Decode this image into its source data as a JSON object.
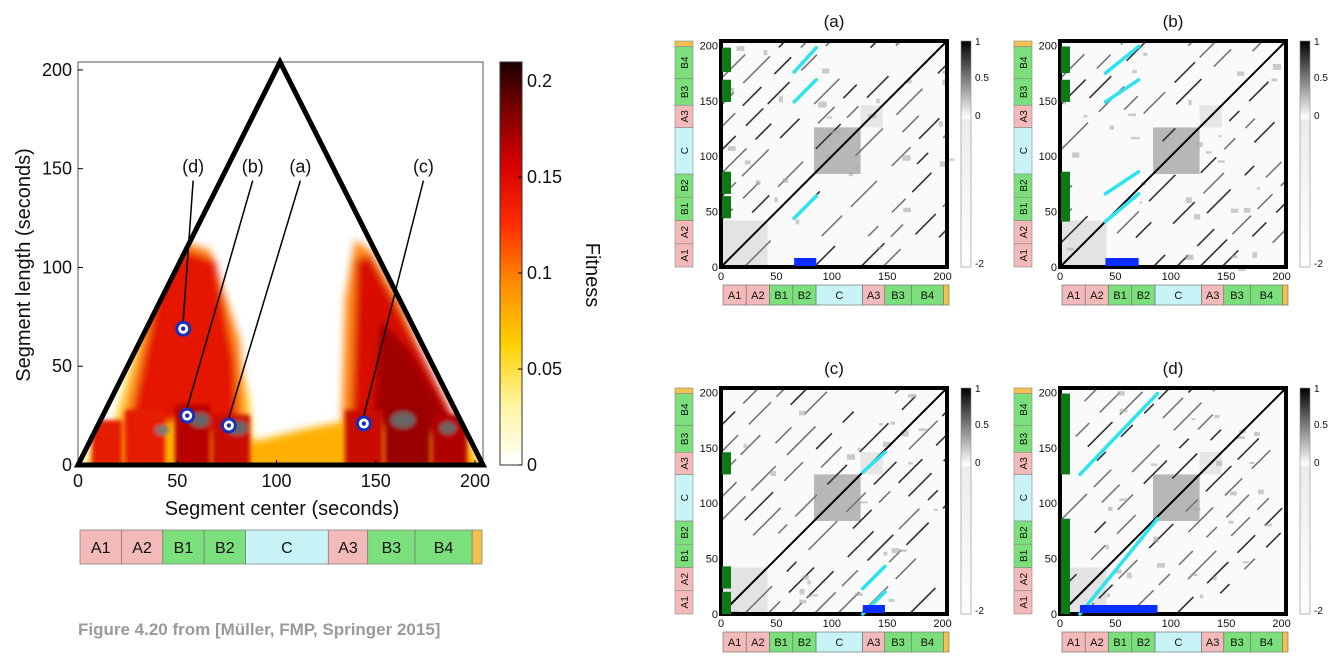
{
  "caption": "Figure 4.20 from [Müller, FMP, Springer 2015]",
  "colors": {
    "segA": "#f4b9b9",
    "segB": "#7be07b",
    "segC": "#c8f4f8",
    "segEnd": "#f2c14e",
    "path": "#2de3f0",
    "induced": "#0a2eff",
    "stripe": "#0b7a16",
    "marker": "#1a2fb8"
  },
  "segments": [
    {
      "label": "A1",
      "kind": "A",
      "start": 0,
      "end": 21
    },
    {
      "label": "A2",
      "kind": "A",
      "start": 21,
      "end": 42
    },
    {
      "label": "B1",
      "kind": "B",
      "start": 42,
      "end": 63
    },
    {
      "label": "B2",
      "kind": "B",
      "start": 63,
      "end": 84
    },
    {
      "label": "C",
      "kind": "C",
      "start": 84,
      "end": 126
    },
    {
      "label": "A3",
      "kind": "A",
      "start": 126,
      "end": 146
    },
    {
      "label": "B3",
      "kind": "B",
      "start": 146,
      "end": 170
    },
    {
      "label": "B4",
      "kind": "B",
      "start": 170,
      "end": 199
    },
    {
      "label": "",
      "kind": "end",
      "start": 199,
      "end": 204
    }
  ],
  "chart_data": [
    {
      "type": "heatmap",
      "name": "fitness-scape-plot",
      "xlabel": "Segment center (seconds)",
      "ylabel": "Segment length (seconds)",
      "xlim": [
        0,
        204
      ],
      "ylim": [
        0,
        204
      ],
      "xticks": [
        0,
        50,
        100,
        150,
        200
      ],
      "yticks": [
        0,
        50,
        100,
        150,
        200
      ],
      "colorbar": {
        "label": "Fitness",
        "range": [
          0,
          0.21
        ],
        "ticks": [
          0,
          0.05,
          0.1,
          0.15,
          0.2
        ]
      },
      "points": [
        {
          "label": "(a)",
          "x": 76,
          "y": 20,
          "label_x": 112,
          "label_y": 148
        },
        {
          "label": "(b)",
          "x": 55,
          "y": 25,
          "label_x": 88,
          "label_y": 148
        },
        {
          "label": "(c)",
          "x": 144,
          "y": 21,
          "label_x": 174,
          "label_y": 148
        },
        {
          "label": "(d)",
          "x": 53,
          "y": 69,
          "label_x": 58,
          "label_y": 148
        }
      ]
    },
    {
      "type": "heatmap",
      "name": "ssm-a",
      "title": "(a)",
      "xlim": [
        0,
        204
      ],
      "ylim": [
        0,
        204
      ],
      "xticks": [
        0,
        50,
        100,
        150,
        200
      ],
      "yticks": [
        0,
        50,
        100,
        150,
        200
      ],
      "colorbar_ticks": [
        "1",
        "0.5",
        "0",
        "-2"
      ],
      "induced_segments": [
        [
          66,
          86
        ],
        [
          44,
          64
        ],
        [
          149,
          169
        ],
        [
          176,
          198
        ]
      ],
      "optimal_path": [
        [
          [
            66,
            44
          ],
          [
            86,
            64
          ]
        ],
        [
          [
            66,
            149
          ],
          [
            86,
            169
          ]
        ],
        [
          [
            66,
            176
          ],
          [
            86,
            198
          ]
        ]
      ],
      "query": [
        66,
        86
      ]
    },
    {
      "type": "heatmap",
      "name": "ssm-b",
      "title": "(b)",
      "xlim": [
        0,
        204
      ],
      "ylim": [
        0,
        204
      ],
      "xticks": [
        0,
        50,
        100,
        150,
        200
      ],
      "yticks": [
        0,
        50,
        100,
        150,
        200
      ],
      "colorbar_ticks": [
        "1",
        "0.5",
        "0",
        "-2"
      ],
      "induced_segments": [
        [
          41,
          71
        ],
        [
          66,
          86
        ],
        [
          149,
          169
        ],
        [
          175,
          199
        ]
      ],
      "optimal_path": [
        [
          [
            41,
            41
          ],
          [
            71,
            66
          ]
        ],
        [
          [
            41,
            66
          ],
          [
            71,
            86
          ]
        ],
        [
          [
            41,
            149
          ],
          [
            71,
            169
          ]
        ],
        [
          [
            41,
            175
          ],
          [
            71,
            199
          ]
        ]
      ],
      "query": [
        41,
        71
      ]
    },
    {
      "type": "heatmap",
      "name": "ssm-c",
      "title": "(c)",
      "xlim": [
        0,
        204
      ],
      "ylim": [
        0,
        204
      ],
      "xticks": [
        0,
        50,
        100,
        150,
        200
      ],
      "yticks": [
        0,
        50,
        100,
        150,
        200
      ],
      "colorbar_ticks": [
        "1",
        "0.5",
        "0",
        "-2"
      ],
      "induced_segments": [
        [
          0,
          20
        ],
        [
          23,
          43
        ],
        [
          126,
          146
        ]
      ],
      "optimal_path": [
        [
          [
            128,
            0
          ],
          [
            148,
            20
          ]
        ],
        [
          [
            128,
            23
          ],
          [
            148,
            43
          ]
        ],
        [
          [
            128,
            128
          ],
          [
            148,
            146
          ]
        ]
      ],
      "query": [
        128,
        148
      ]
    },
    {
      "type": "heatmap",
      "name": "ssm-d",
      "title": "(d)",
      "xlim": [
        0,
        204
      ],
      "ylim": [
        0,
        204
      ],
      "xticks": [
        0,
        50,
        100,
        150,
        200
      ],
      "yticks": [
        0,
        50,
        100,
        150,
        200
      ],
      "colorbar_ticks": [
        "1",
        "0.5",
        "0",
        "-2"
      ],
      "induced_segments": [
        [
          0,
          86
        ],
        [
          126,
          199
        ]
      ],
      "optimal_path": [
        [
          [
            18,
            0
          ],
          [
            88,
            86
          ]
        ],
        [
          [
            18,
            126
          ],
          [
            88,
            199
          ]
        ]
      ],
      "query": [
        18,
        88
      ]
    }
  ]
}
